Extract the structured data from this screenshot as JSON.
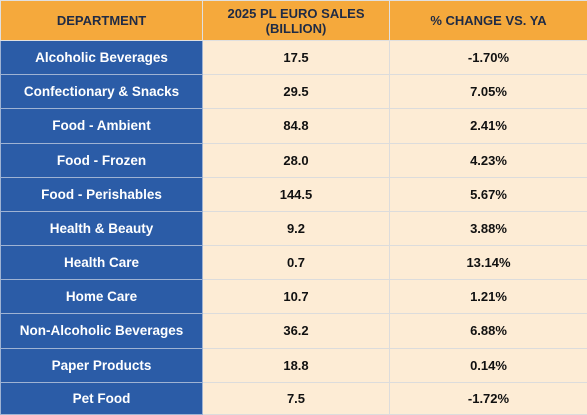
{
  "colors": {
    "header_bg": "#f5a93c",
    "header_text": "#1f2b45",
    "department_bg": "#2b5ca7",
    "department_text": "#ffffff",
    "value_bg": "#fdecd5"
  },
  "table": {
    "headers": {
      "department": "DEPARTMENT",
      "sales_line1": "2025 PL EURO SALES",
      "sales_line2": "(BILLION)",
      "change": "% CHANGE VS. YA"
    },
    "rows": [
      {
        "department": "Alcoholic Beverages",
        "sales": "17.5",
        "change": "-1.70%"
      },
      {
        "department": "Confectionary & Snacks",
        "sales": "29.5",
        "change": "7.05%"
      },
      {
        "department": "Food - Ambient",
        "sales": "84.8",
        "change": "2.41%"
      },
      {
        "department": "Food - Frozen",
        "sales": "28.0",
        "change": "4.23%"
      },
      {
        "department": "Food - Perishables",
        "sales": "144.5",
        "change": "5.67%"
      },
      {
        "department": "Health & Beauty",
        "sales": "9.2",
        "change": "3.88%"
      },
      {
        "department": "Health Care",
        "sales": "0.7",
        "change": "13.14%"
      },
      {
        "department": "Home Care",
        "sales": "10.7",
        "change": "1.21%"
      },
      {
        "department": "Non-Alcoholic Beverages",
        "sales": "36.2",
        "change": "6.88%"
      },
      {
        "department": "Paper Products",
        "sales": "18.8",
        "change": "0.14%"
      },
      {
        "department": "Pet Food",
        "sales": "7.5",
        "change": "-1.72%"
      }
    ]
  }
}
